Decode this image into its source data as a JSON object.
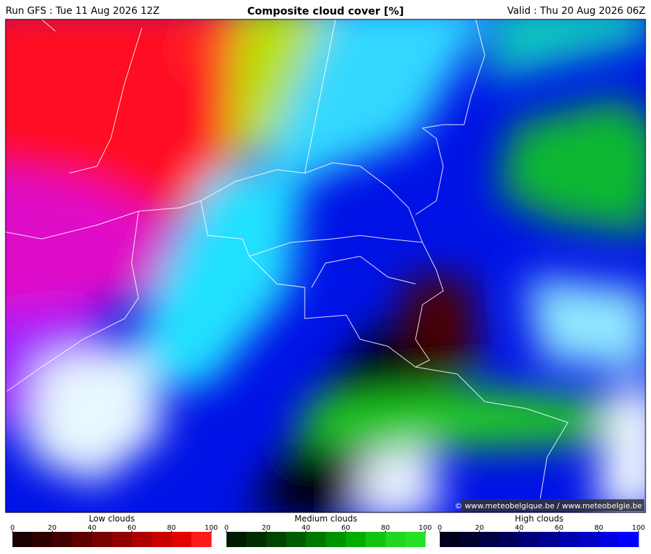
{
  "header": {
    "run": "Run GFS : Tue 11 Aug 2026 12Z",
    "title": "Composite cloud cover [%]",
    "valid": "Valid : Thu 20 Aug 2026 06Z"
  },
  "attribution": "© www.meteobelgique.be / www.meteobelgie.be",
  "legends": [
    {
      "title": "Low clouds",
      "ticks": [
        0,
        20,
        40,
        60,
        80,
        100
      ],
      "colors": [
        "#1a0000",
        "#2e0000",
        "#440000",
        "#5c0000",
        "#780000",
        "#930000",
        "#ae0000",
        "#c80000",
        "#e20000",
        "#ff1a1a"
      ]
    },
    {
      "title": "Medium clouds",
      "ticks": [
        0,
        20,
        40,
        60,
        80,
        100
      ],
      "colors": [
        "#001a00",
        "#002e00",
        "#004400",
        "#005c00",
        "#007800",
        "#009300",
        "#00ae00",
        "#10c410",
        "#20d620",
        "#26e226"
      ]
    },
    {
      "title": "High clouds",
      "ticks": [
        0,
        20,
        40,
        60,
        80,
        100
      ],
      "colors": [
        "#00001a",
        "#00002e",
        "#000044",
        "#00005c",
        "#000078",
        "#000093",
        "#0000ae",
        "#0000c8",
        "#0000e2",
        "#0000ff"
      ]
    }
  ]
}
